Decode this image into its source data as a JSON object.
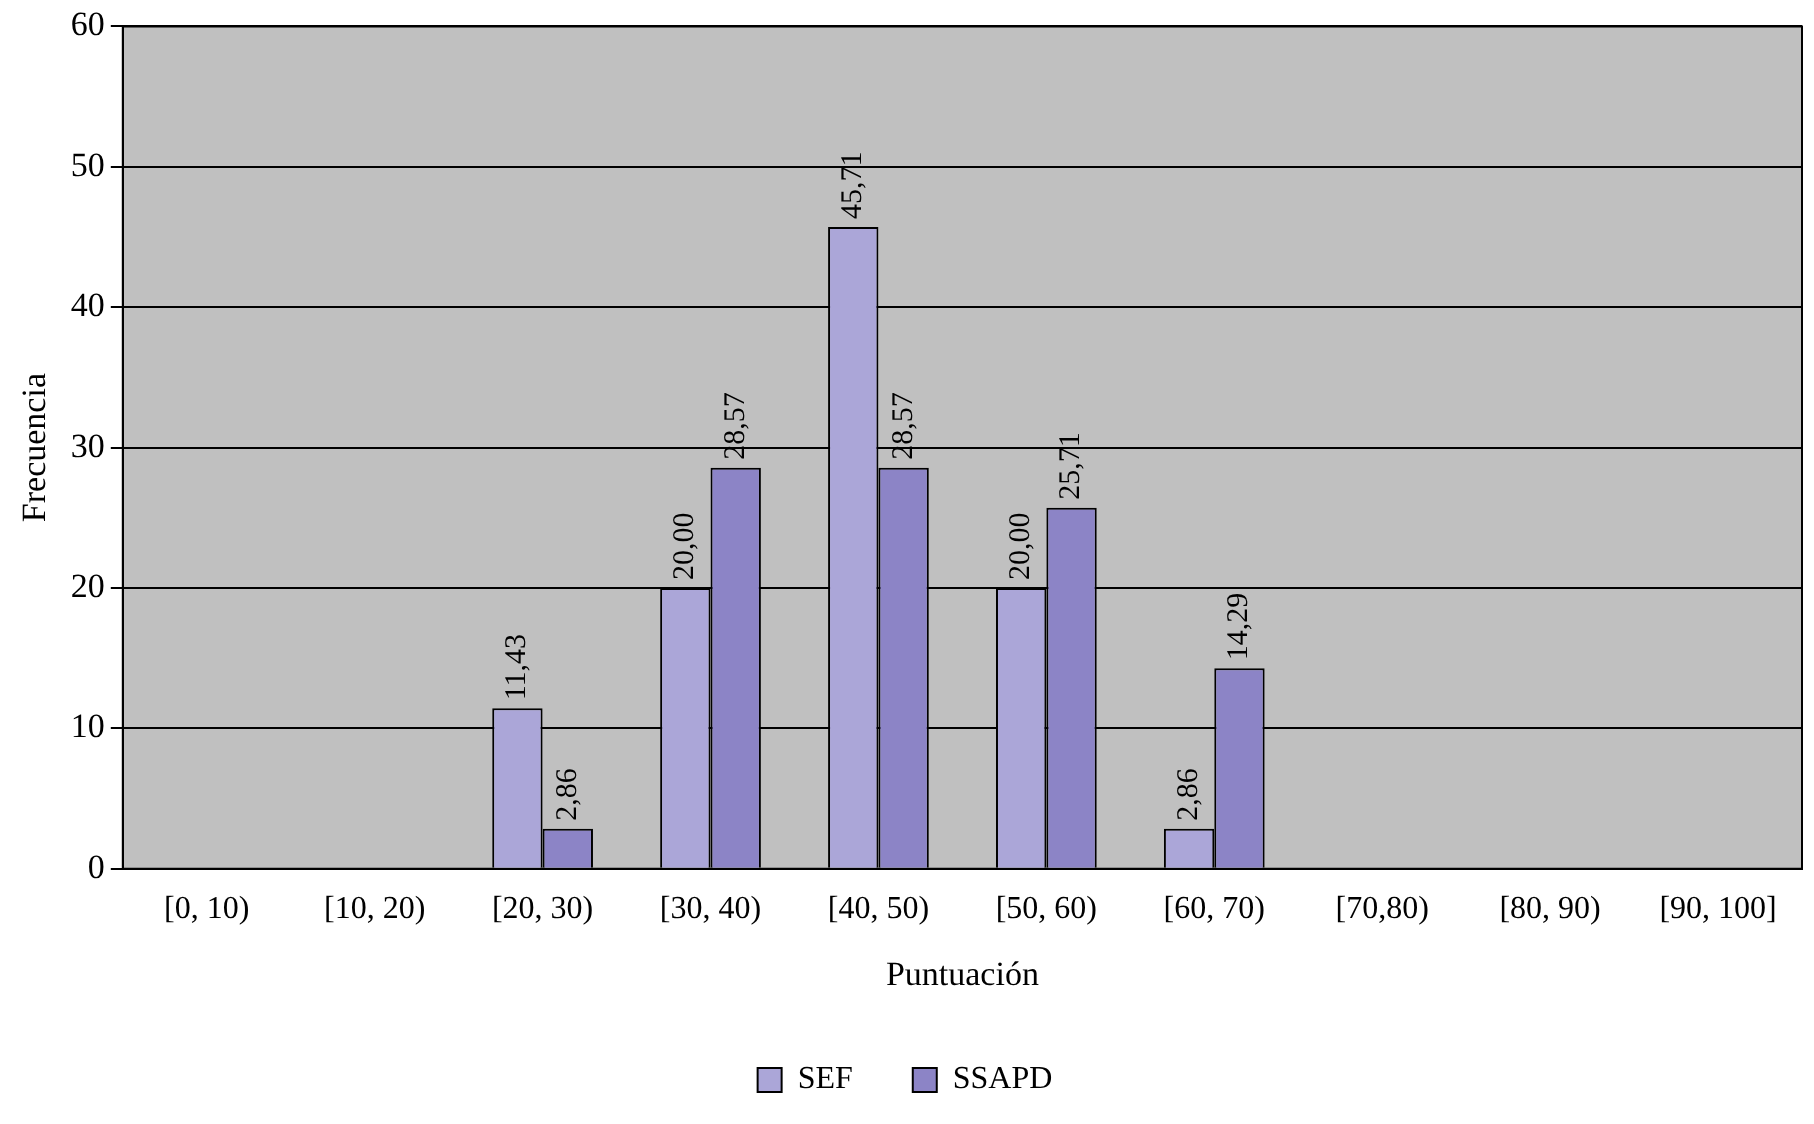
{
  "chart_data": {
    "type": "bar",
    "xlabel": "Puntuación",
    "ylabel": "Frecuencia",
    "categories": [
      "[0, 10)",
      "[10, 20)",
      "[20, 30)",
      "[30, 40)",
      "[40, 50)",
      "[50, 60)",
      "[60, 70)",
      "[70,80)",
      "[80, 90)",
      "[90, 100]"
    ],
    "series": [
      {
        "name": "SEF",
        "color": "#aba6d8",
        "values": [
          0,
          0,
          11.43,
          20,
          45.71,
          20,
          2.86,
          0,
          0,
          0
        ],
        "value_labels": [
          null,
          null,
          "11,43",
          "20,00",
          "45,71",
          "20,00",
          "2,86",
          null,
          null,
          null
        ]
      },
      {
        "name": "SSAPD",
        "color": "#8c84c6",
        "values": [
          0,
          0,
          2.86,
          28.57,
          28.57,
          25.71,
          14.29,
          0,
          0,
          0
        ],
        "value_labels": [
          null,
          null,
          "2,86",
          "28,57",
          "28,57",
          "25,71",
          "14,29",
          null,
          null,
          null
        ]
      }
    ],
    "ylim": [
      0,
      60
    ],
    "yticks": [
      0,
      10,
      20,
      30,
      40,
      50,
      60
    ],
    "grid": "y",
    "legend": "bottom"
  }
}
